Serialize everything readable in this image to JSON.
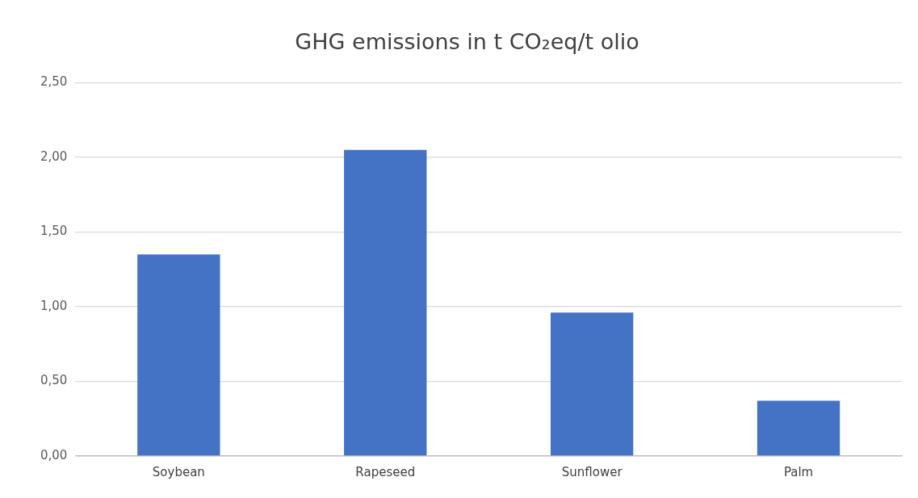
{
  "chart_data": {
    "type": "bar",
    "title": "GHG emissions in t CO₂eq/t olio",
    "categories": [
      "Soybean",
      "Rapeseed",
      "Sunflower",
      "Palm"
    ],
    "values": [
      1.35,
      2.05,
      0.96,
      0.37
    ],
    "color": "#4472c4",
    "ylim": [
      0,
      2.5
    ],
    "yticks": [
      {
        "value": 0,
        "label": "0,00"
      },
      {
        "value": 0.5,
        "label": "0,50"
      },
      {
        "value": 1,
        "label": "1,00"
      },
      {
        "value": 1.5,
        "label": "1,50"
      },
      {
        "value": 2,
        "label": "2,00"
      },
      {
        "value": 2.5,
        "label": "2,50"
      }
    ],
    "grid": "y",
    "legend": false
  }
}
